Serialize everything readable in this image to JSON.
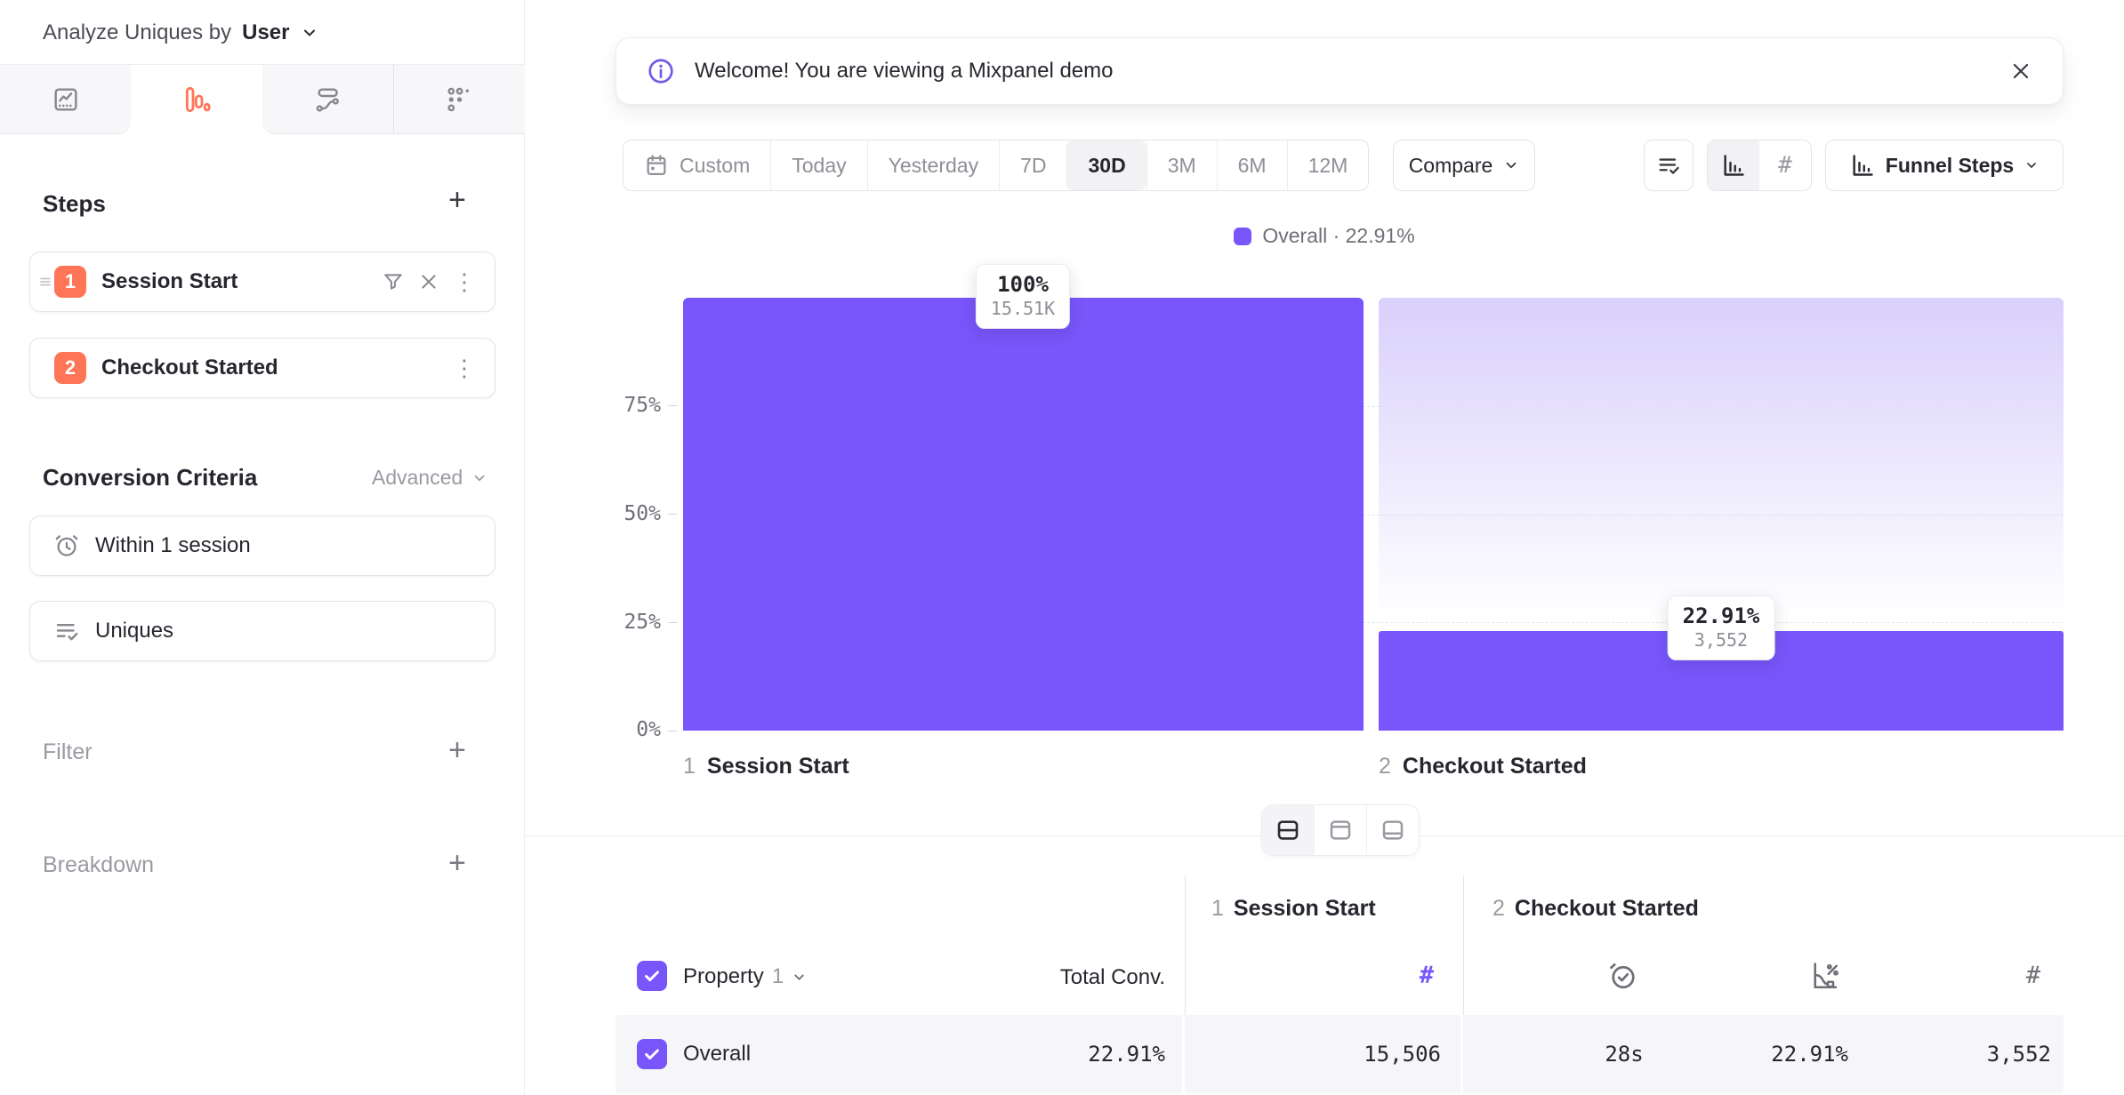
{
  "colors": {
    "purple": "#7856fb",
    "coral": "#ff7557"
  },
  "icons": {
    "plus": "+",
    "kebab": "⋮",
    "hash": "#"
  },
  "sidebar": {
    "analyze_label": "Analyze Uniques by",
    "analyze_value": "User",
    "tabs": [
      {
        "name": "insights",
        "active": false
      },
      {
        "name": "funnels",
        "active": true
      },
      {
        "name": "flows",
        "active": false
      },
      {
        "name": "retention",
        "active": false
      }
    ],
    "steps_title": "Steps",
    "steps": [
      {
        "index": "1",
        "label": "Session Start"
      },
      {
        "index": "2",
        "label": "Checkout Started"
      }
    ],
    "conversion_title": "Conversion Criteria",
    "advanced_label": "Advanced",
    "criteria": [
      {
        "label": "Within 1 session",
        "icon": "alarm-clock-icon"
      },
      {
        "label": "Uniques",
        "icon": "list-check-icon"
      }
    ],
    "filter_label": "Filter",
    "breakdown_label": "Breakdown"
  },
  "banner": {
    "message": "Welcome! You are viewing a Mixpanel demo"
  },
  "toolbar": {
    "ranges": [
      "Custom",
      "Today",
      "Yesterday",
      "7D",
      "30D",
      "3M",
      "6M",
      "12M"
    ],
    "selected_range": "30D",
    "compare_label": "Compare",
    "funnel_steps_label": "Funnel Steps"
  },
  "legend": {
    "text": "Overall · 22.91%"
  },
  "chart_data": {
    "type": "bar",
    "title": "Funnel Steps",
    "categories": [
      "Session Start",
      "Checkout Started"
    ],
    "step_numbers": [
      "1",
      "2"
    ],
    "values": [
      100,
      22.91
    ],
    "value_labels": [
      "100%",
      "22.91%"
    ],
    "counts": [
      "15.51K",
      "3,552"
    ],
    "series": [
      {
        "name": "Overall",
        "overall_conversion": "22.91%",
        "color": "#7856fb"
      }
    ],
    "ylabel": "%",
    "ylim": [
      0,
      100
    ],
    "y_ticks": [
      "75%",
      "50%",
      "25%",
      "0%"
    ],
    "grid": "dashed",
    "legend_position": "top-center"
  },
  "table": {
    "property_label": "Property",
    "property_number": "1",
    "total_conv_header": "Total Conv.",
    "columns": [
      {
        "index": "1",
        "label": "Session Start"
      },
      {
        "index": "2",
        "label": "Checkout Started"
      }
    ],
    "rows": [
      {
        "label": "Overall",
        "total_conv": "22.91%",
        "step1_uniques": "15,506",
        "avg_time": "28s",
        "conv_rate": "22.91%",
        "step2_uniques": "3,552"
      }
    ]
  }
}
